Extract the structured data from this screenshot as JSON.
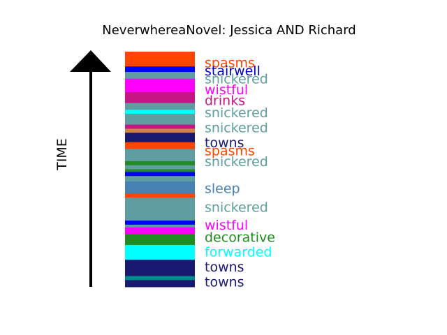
{
  "chart_data": {
    "type": "bar",
    "title": "NeverwhereaNovel: Jessica AND Richard",
    "ylabel": "TIME",
    "segments": [
      {
        "start": 0.0,
        "end": 2.5,
        "color": "#FF4500"
      },
      {
        "start": 2.5,
        "end": 5.5,
        "color": "#FF4500"
      },
      {
        "start": 5.5,
        "end": 7.5,
        "color": "#0000FF"
      },
      {
        "start": 7.5,
        "end": 10.0,
        "color": "#5F9EA0"
      },
      {
        "start": 10.0,
        "end": 12.0,
        "color": "#FF00FF"
      },
      {
        "start": 12.0,
        "end": 15.0,
        "color": "#FF00FF"
      },
      {
        "start": 15.0,
        "end": 19.0,
        "color": "#C71585"
      },
      {
        "start": 19.0,
        "end": 21.5,
        "color": "#5F9EA0"
      },
      {
        "start": 21.5,
        "end": 23.0,
        "color": "#00FFFF"
      },
      {
        "start": 23.0,
        "end": 24.5,
        "color": "#5F9EA0"
      },
      {
        "start": 24.5,
        "end": 27.0,
        "color": "#5F9EA0"
      },
      {
        "start": 27.0,
        "end": 28.5,
        "color": "#C71585"
      },
      {
        "start": 28.5,
        "end": 30.0,
        "color": "#CD853F"
      },
      {
        "start": 30.0,
        "end": 33.5,
        "color": "#191970"
      },
      {
        "start": 33.5,
        "end": 36.0,
        "color": "#FF4500"
      },
      {
        "start": 36.0,
        "end": 38.0,
        "color": "#5F9EA0"
      },
      {
        "start": 38.0,
        "end": 40.5,
        "color": "#5F9EA0"
      },
      {
        "start": 40.5,
        "end": 42.0,
        "color": "#228B22"
      },
      {
        "start": 42.0,
        "end": 43.5,
        "color": "#5F9EA0"
      },
      {
        "start": 43.5,
        "end": 44.5,
        "color": "#228B22"
      },
      {
        "start": 44.5,
        "end": 46.0,
        "color": "#0000FF"
      },
      {
        "start": 46.0,
        "end": 48.0,
        "color": "#5F9EA0"
      },
      {
        "start": 48.0,
        "end": 52.5,
        "color": "#4682B4"
      },
      {
        "start": 52.5,
        "end": 54.0,
        "color": "#FF4500"
      },
      {
        "start": 54.0,
        "end": 62.5,
        "color": "#5F9EA0"
      },
      {
        "start": 62.5,
        "end": 64.0,
        "color": "#0000FF"
      },
      {
        "start": 64.0,
        "end": 65.0,
        "color": "#5F9EA0"
      },
      {
        "start": 65.0,
        "end": 67.5,
        "color": "#FF00FF"
      },
      {
        "start": 67.5,
        "end": 69.0,
        "color": "#228B22"
      },
      {
        "start": 69.0,
        "end": 71.5,
        "color": "#228B22"
      },
      {
        "start": 71.5,
        "end": 77.0,
        "color": "#00FFFF"
      },
      {
        "start": 77.0,
        "end": 79.5,
        "color": "#191970"
      },
      {
        "start": 79.5,
        "end": 83.0,
        "color": "#191970"
      },
      {
        "start": 83.0,
        "end": 84.5,
        "color": "#008B8B"
      },
      {
        "start": 84.5,
        "end": 87.0,
        "color": "#191970"
      }
    ],
    "labels": [
      {
        "text": "spasms",
        "position": 4.0,
        "color": "#FF4500"
      },
      {
        "text": "stairwell",
        "position": 7.0,
        "color": "#0000CD"
      },
      {
        "text": "snickered",
        "position": 10.0,
        "color": "#5F9EA0"
      },
      {
        "text": "wistful",
        "position": 14.0,
        "color": "#FF00FF"
      },
      {
        "text": "drinks",
        "position": 18.0,
        "color": "#C71585"
      },
      {
        "text": "snickered",
        "position": 22.5,
        "color": "#5F9EA0"
      },
      {
        "text": "snickered",
        "position": 28.0,
        "color": "#5F9EA0"
      },
      {
        "text": "towns",
        "position": 33.5,
        "color": "#191970"
      },
      {
        "text": "spasms",
        "position": 36.5,
        "color": "#FF4500"
      },
      {
        "text": "snickered",
        "position": 40.5,
        "color": "#5F9EA0"
      },
      {
        "text": "sleep",
        "position": 50.5,
        "color": "#4682B4"
      },
      {
        "text": "snickered",
        "position": 57.5,
        "color": "#5F9EA0"
      },
      {
        "text": "wistful",
        "position": 64.0,
        "color": "#FF00FF"
      },
      {
        "text": "decorative",
        "position": 68.5,
        "color": "#228B22"
      },
      {
        "text": "forwarded",
        "position": 74.0,
        "color": "#00FFFF"
      },
      {
        "text": "towns",
        "position": 79.5,
        "color": "#191970"
      },
      {
        "text": "towns",
        "position": 85.0,
        "color": "#191970"
      }
    ],
    "grid": false,
    "legend": "none"
  }
}
